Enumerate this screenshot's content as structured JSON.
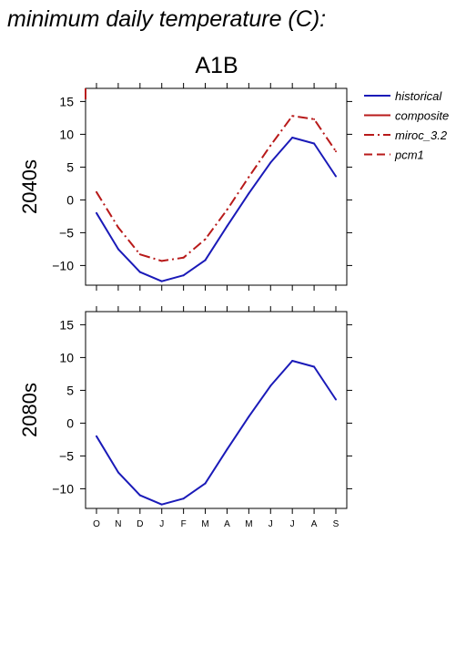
{
  "header": {
    "title": "minimum daily temperature (C):"
  },
  "chart_data": {
    "type": "line",
    "title": "A1B",
    "categories": [
      "O",
      "N",
      "D",
      "J",
      "F",
      "M",
      "A",
      "M",
      "J",
      "J",
      "A",
      "S"
    ],
    "ylim": [
      -13,
      17
    ],
    "yticks": [
      -10,
      -5,
      0,
      5,
      10,
      15
    ],
    "legend": {
      "placement": "right",
      "entries": [
        {
          "name": "historical",
          "color": "#1a1ab8",
          "dash": "solid"
        },
        {
          "name": "composite",
          "color": "#b81a1a",
          "dash": "solid"
        },
        {
          "name": "miroc_3.2",
          "color": "#b81a1a",
          "dash": "dashdot"
        },
        {
          "name": "pcm1",
          "color": "#b81a1a",
          "dash": "dashed"
        }
      ]
    },
    "panels": [
      {
        "label": "2040s",
        "series": [
          {
            "name": "historical",
            "color": "#1a1ab8",
            "dash": "solid",
            "values": [
              -2,
              -7.5,
              -11,
              -12.4,
              -11.5,
              -9.2,
              -4,
              1,
              5.7,
              9.5,
              8.6,
              3.6
            ]
          },
          {
            "name": "miroc_3.2",
            "color": "#b81a1a",
            "dash": "dashdot",
            "values": [
              1.2,
              -4.2,
              -8.3,
              -9.3,
              -8.8,
              -6,
              -1.5,
              3.5,
              8.3,
              12.8,
              12.3,
              7.4
            ]
          }
        ]
      },
      {
        "label": "2080s",
        "series": [
          {
            "name": "historical",
            "color": "#1a1ab8",
            "dash": "solid",
            "values": [
              -2,
              -7.5,
              -11,
              -12.4,
              -11.5,
              -9.2,
              -4,
              1,
              5.7,
              9.5,
              8.6,
              3.6
            ]
          }
        ]
      }
    ]
  }
}
